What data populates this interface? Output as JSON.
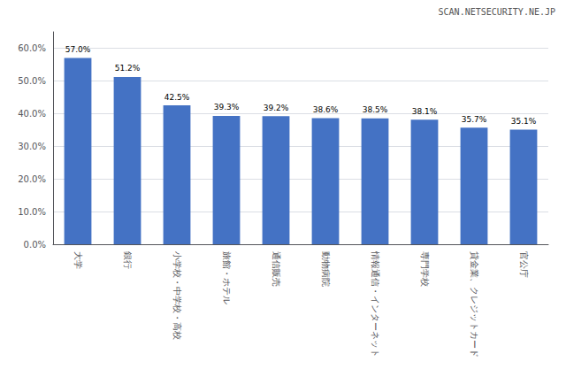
{
  "chart_data": {
    "type": "bar",
    "categories": [
      "大学",
      "銀行",
      "小学校・中学校・高校",
      "旅館・ホテル",
      "通信販売",
      "動物病院",
      "情報通信・インターネット",
      "専門学校",
      "貸金業、クレジットカード",
      "官公庁"
    ],
    "values": [
      57.0,
      51.2,
      42.5,
      39.3,
      39.2,
      38.6,
      38.5,
      38.1,
      35.7,
      35.1
    ],
    "value_labels": [
      "57.0%",
      "51.2%",
      "42.5%",
      "39.3%",
      "39.2%",
      "38.6%",
      "38.5%",
      "38.1%",
      "35.7%",
      "35.1%"
    ],
    "data_labels": true,
    "color": "#4472c4",
    "ylim": [
      0,
      65
    ],
    "yticks": [
      {
        "value": 0,
        "label": "0.0%"
      },
      {
        "value": 10,
        "label": "10.0%"
      },
      {
        "value": 20,
        "label": "20.0%"
      },
      {
        "value": 30,
        "label": "30.0%"
      },
      {
        "value": 40,
        "label": "40.0%"
      },
      {
        "value": 50,
        "label": "50.0%"
      },
      {
        "value": 60,
        "label": "60.0%"
      }
    ],
    "grid": true,
    "annotations": [
      "SCAN.NETSECURITY.NE.JP"
    ]
  }
}
